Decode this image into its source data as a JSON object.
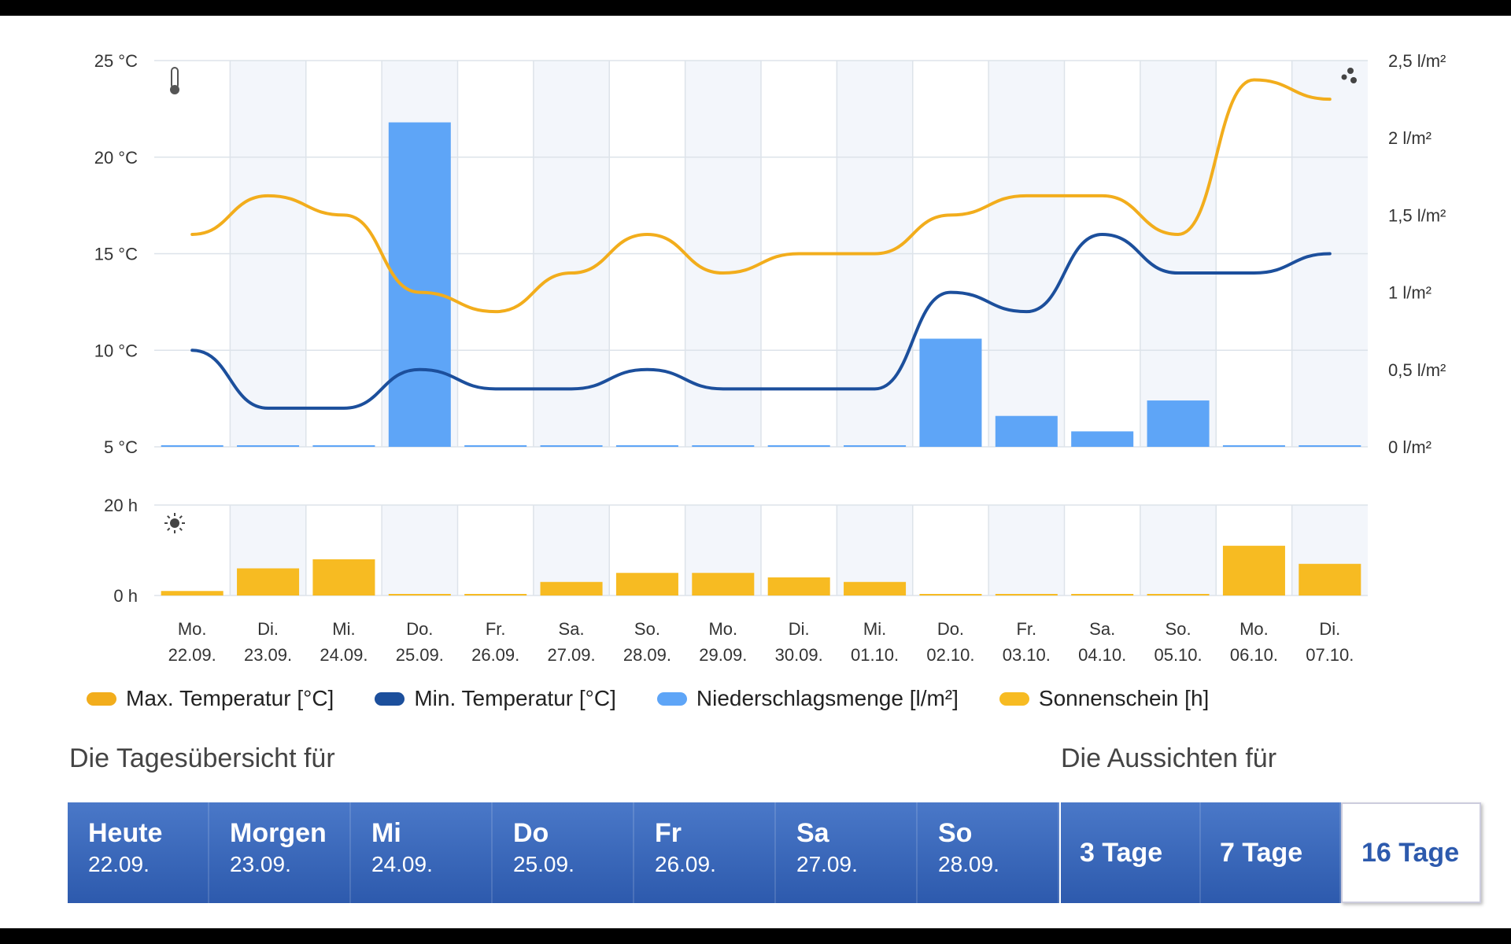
{
  "chart_data": {
    "type": "line",
    "categories_day": [
      "Mo.",
      "Di.",
      "Mi.",
      "Do.",
      "Fr.",
      "Sa.",
      "So.",
      "Mo.",
      "Di.",
      "Mi.",
      "Do.",
      "Fr.",
      "Sa.",
      "So.",
      "Mo.",
      "Di."
    ],
    "categories_date": [
      "22.09.",
      "23.09.",
      "24.09.",
      "25.09.",
      "26.09.",
      "27.09.",
      "28.09.",
      "29.09.",
      "30.09.",
      "01.10.",
      "02.10.",
      "03.10.",
      "04.10.",
      "05.10.",
      "06.10.",
      "07.10."
    ],
    "series": [
      {
        "name": "Max. Temperatur [°C]",
        "type": "line",
        "axis": "temp",
        "color": "#f2ad1c",
        "values": [
          16,
          18,
          17,
          13,
          12,
          14,
          16,
          14,
          15,
          15,
          17,
          18,
          18,
          16,
          24,
          23
        ]
      },
      {
        "name": "Min. Temperatur [°C]",
        "type": "line",
        "axis": "temp",
        "color": "#1c4f9c",
        "values": [
          10,
          7,
          7,
          9,
          8,
          8,
          9,
          8,
          8,
          8,
          13,
          12,
          16,
          14,
          14,
          15
        ]
      },
      {
        "name": "Niederschlagsmenge [l/m²]",
        "type": "bar",
        "axis": "precip",
        "color": "#5ea5f7",
        "values": [
          0,
          0,
          0,
          2.1,
          0,
          0,
          0,
          0,
          0,
          0,
          0.7,
          0.2,
          0.1,
          0.3,
          0,
          0
        ]
      },
      {
        "name": "Sonnenschein [h]",
        "type": "bar",
        "axis": "sun",
        "color": "#f7bb22",
        "values": [
          1,
          6,
          8,
          0,
          0,
          3,
          5,
          5,
          4,
          3,
          0,
          0,
          0,
          0,
          11,
          7
        ]
      }
    ],
    "temp_axis": {
      "ylim": [
        5,
        25
      ],
      "ticks": [
        "25 °C",
        "20 °C",
        "15 °C",
        "10 °C",
        "5 °C"
      ]
    },
    "precip_axis": {
      "ylim": [
        0,
        2.5
      ],
      "ticks": [
        "2,5 l/m²",
        "2 l/m²",
        "1,5 l/m²",
        "1 l/m²",
        "0,5 l/m²",
        "0 l/m²"
      ]
    },
    "sun_axis": {
      "ylim": [
        0,
        20
      ],
      "ticks": [
        "20 h",
        "0 h"
      ]
    }
  },
  "icons": {
    "thermometer": "thermometer-icon",
    "rain": "rain-drops-icon",
    "sun": "sun-icon"
  },
  "overview_title": "Die Tagesübersicht für",
  "outlook_title": "Die Aussichten für",
  "day_tabs": [
    {
      "label": "Heute",
      "date": "22.09."
    },
    {
      "label": "Morgen",
      "date": "23.09."
    },
    {
      "label": "Mi",
      "date": "24.09."
    },
    {
      "label": "Do",
      "date": "25.09."
    },
    {
      "label": "Fr",
      "date": "26.09."
    },
    {
      "label": "Sa",
      "date": "27.09."
    },
    {
      "label": "So",
      "date": "28.09."
    }
  ],
  "range_tabs": [
    {
      "label": "3 Tage",
      "active": false
    },
    {
      "label": "7 Tage",
      "active": false
    },
    {
      "label": "16 Tage",
      "active": true
    }
  ]
}
